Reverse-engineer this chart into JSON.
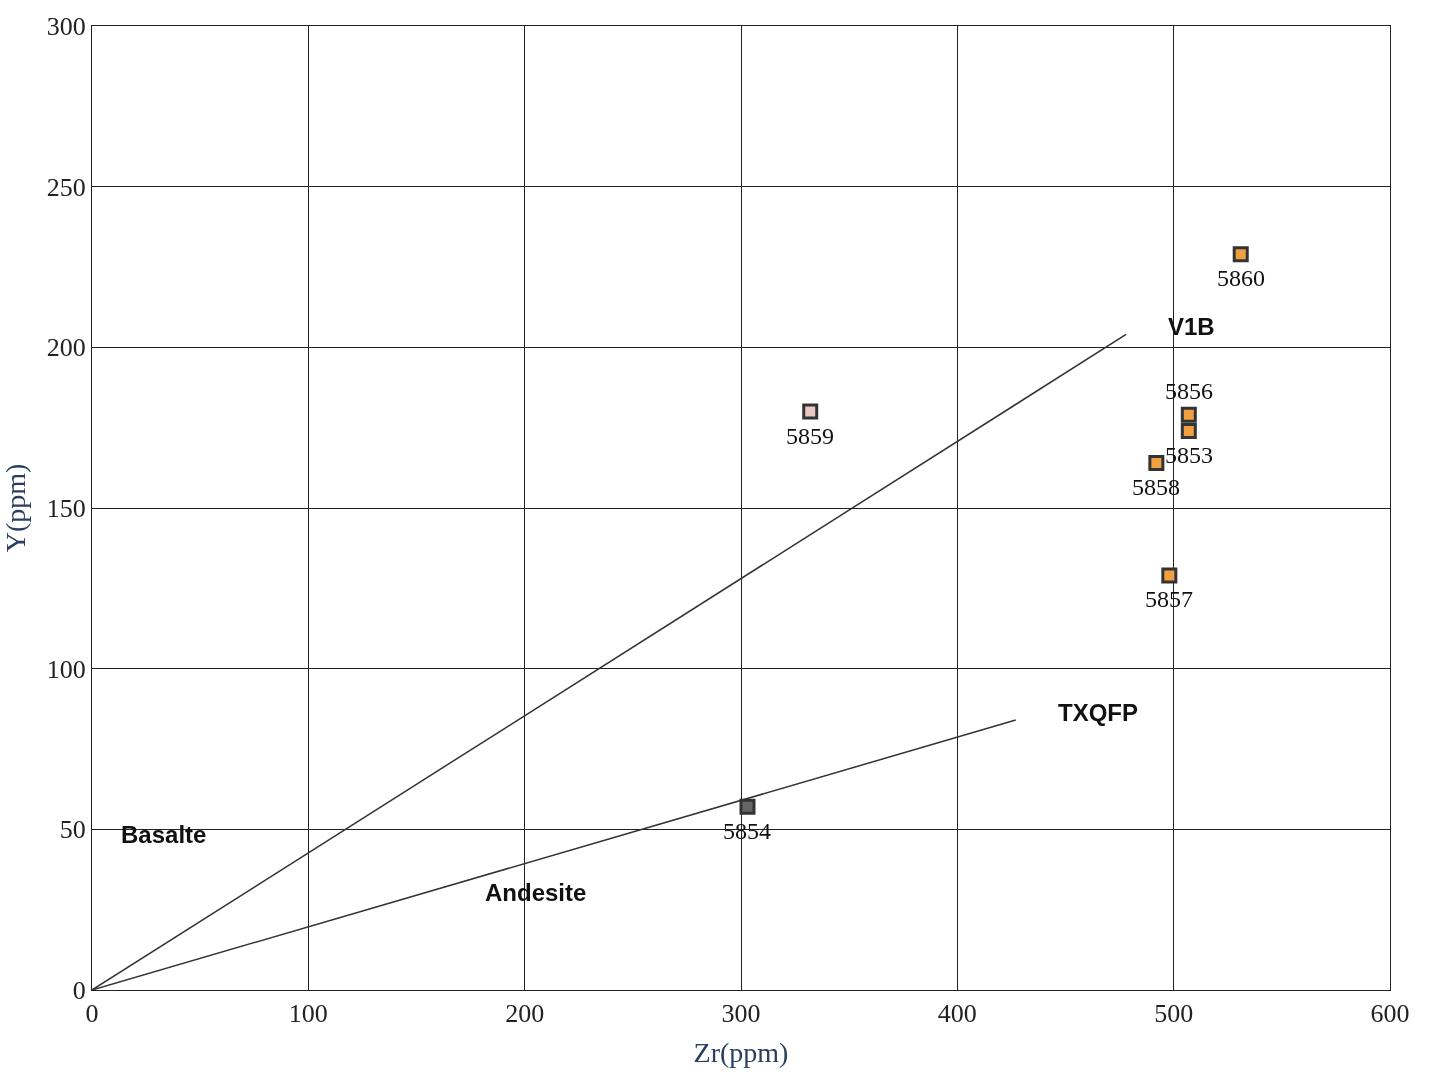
{
  "chart_data": {
    "type": "scatter",
    "xlabel": "Zr(ppm)",
    "ylabel": "Y(ppm)",
    "xlim": [
      0,
      600
    ],
    "xticks": [
      0,
      100,
      200,
      300,
      400,
      500,
      600
    ],
    "ylim": [
      0,
      300
    ],
    "yticks": [
      0,
      50,
      100,
      150,
      200,
      250,
      300
    ],
    "grid": true,
    "legend": false,
    "series": [
      {
        "marker": "square",
        "x": [
          531,
          332,
          507,
          507,
          492,
          498,
          303
        ],
        "values": [
          229,
          180,
          179,
          174,
          164,
          129,
          57
        ],
        "colors": [
          "#f0a040",
          "#e8c8c0",
          "#f0a040",
          "#f0a040",
          "#f0a040",
          "#f0a040",
          "#666666"
        ]
      },
      {
        "type": "line",
        "name": "V1B",
        "color": "#333333",
        "x": [
          0,
          478
        ],
        "values": [
          0,
          204
        ]
      },
      {
        "type": "line",
        "name": "TXQFP",
        "color": "#333333",
        "x": [
          0,
          427
        ],
        "values": [
          0,
          84
        ]
      }
    ],
    "annotations": [
      {
        "text": "5860",
        "x": 531,
        "y": 229
      },
      {
        "text": "5859",
        "x": 332,
        "y": 180
      },
      {
        "text": "5856",
        "x": 507,
        "y": 179
      },
      {
        "text": "5853",
        "x": 507,
        "y": 174
      },
      {
        "text": "5858",
        "x": 492,
        "y": 164
      },
      {
        "text": "5857",
        "x": 498,
        "y": 129
      },
      {
        "text": "5854",
        "x": 303,
        "y": 57
      },
      "Basalte",
      "Andesite"
    ]
  }
}
